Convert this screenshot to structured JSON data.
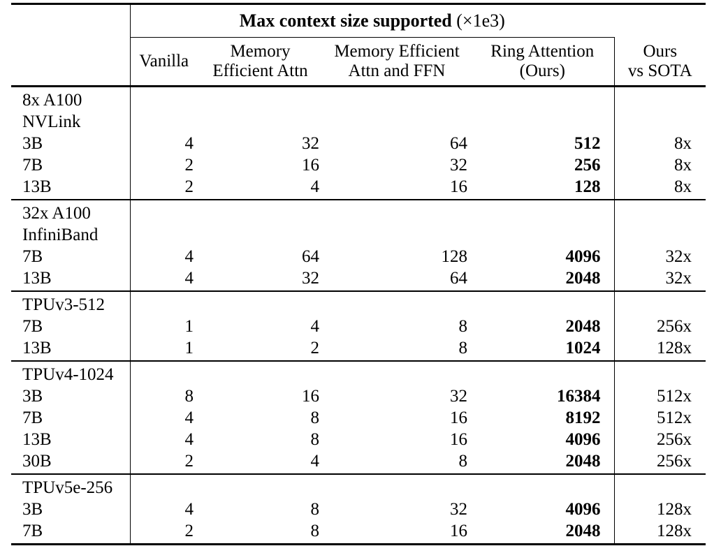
{
  "header": {
    "group_title_bold": "Max context size supported",
    "group_title_suffix": " (×1e3)",
    "columns": {
      "vanilla": "Vanilla",
      "memory_efficient_attn": "Memory\nEfficient Attn",
      "memory_efficient_attn_ffn": "Memory Efficient\nAttn and FFN",
      "ring_attention": "Ring Attention\n(Ours)",
      "ours_vs_sota": "Ours\nvs SOTA"
    }
  },
  "sections": [
    {
      "group": [
        "8x A100",
        "NVLink"
      ],
      "rows": [
        {
          "label": "3B",
          "vanilla": "4",
          "memory_efficient_attn": "32",
          "memory_efficient_attn_ffn": "64",
          "ring_attention": "512",
          "ours_vs_sota": "8x"
        },
        {
          "label": "7B",
          "vanilla": "2",
          "memory_efficient_attn": "16",
          "memory_efficient_attn_ffn": "32",
          "ring_attention": "256",
          "ours_vs_sota": "8x"
        },
        {
          "label": "13B",
          "vanilla": "2",
          "memory_efficient_attn": "4",
          "memory_efficient_attn_ffn": "16",
          "ring_attention": "128",
          "ours_vs_sota": "8x"
        }
      ]
    },
    {
      "group": [
        "32x A100",
        "InfiniBand"
      ],
      "rows": [
        {
          "label": "7B",
          "vanilla": "4",
          "memory_efficient_attn": "64",
          "memory_efficient_attn_ffn": "128",
          "ring_attention": "4096",
          "ours_vs_sota": "32x"
        },
        {
          "label": "13B",
          "vanilla": "4",
          "memory_efficient_attn": "32",
          "memory_efficient_attn_ffn": "64",
          "ring_attention": "2048",
          "ours_vs_sota": "32x"
        }
      ]
    },
    {
      "group": [
        "TPUv3-512"
      ],
      "rows": [
        {
          "label": "7B",
          "vanilla": "1",
          "memory_efficient_attn": "4",
          "memory_efficient_attn_ffn": "8",
          "ring_attention": "2048",
          "ours_vs_sota": "256x"
        },
        {
          "label": "13B",
          "vanilla": "1",
          "memory_efficient_attn": "2",
          "memory_efficient_attn_ffn": "8",
          "ring_attention": "1024",
          "ours_vs_sota": "128x"
        }
      ]
    },
    {
      "group": [
        "TPUv4-1024"
      ],
      "rows": [
        {
          "label": "3B",
          "vanilla": "8",
          "memory_efficient_attn": "16",
          "memory_efficient_attn_ffn": "32",
          "ring_attention": "16384",
          "ours_vs_sota": "512x"
        },
        {
          "label": "7B",
          "vanilla": "4",
          "memory_efficient_attn": "8",
          "memory_efficient_attn_ffn": "16",
          "ring_attention": "8192",
          "ours_vs_sota": "512x"
        },
        {
          "label": "13B",
          "vanilla": "4",
          "memory_efficient_attn": "8",
          "memory_efficient_attn_ffn": "16",
          "ring_attention": "4096",
          "ours_vs_sota": "256x"
        },
        {
          "label": "30B",
          "vanilla": "2",
          "memory_efficient_attn": "4",
          "memory_efficient_attn_ffn": "8",
          "ring_attention": "2048",
          "ours_vs_sota": "256x"
        }
      ]
    },
    {
      "group": [
        "TPUv5e-256"
      ],
      "rows": [
        {
          "label": "3B",
          "vanilla": "4",
          "memory_efficient_attn": "8",
          "memory_efficient_attn_ffn": "32",
          "ring_attention": "4096",
          "ours_vs_sota": "128x"
        },
        {
          "label": "7B",
          "vanilla": "2",
          "memory_efficient_attn": "8",
          "memory_efficient_attn_ffn": "16",
          "ring_attention": "2048",
          "ours_vs_sota": "128x"
        }
      ]
    }
  ],
  "colors": {
    "text": "#000000",
    "background": "#ffffff",
    "rule": "#000000"
  }
}
